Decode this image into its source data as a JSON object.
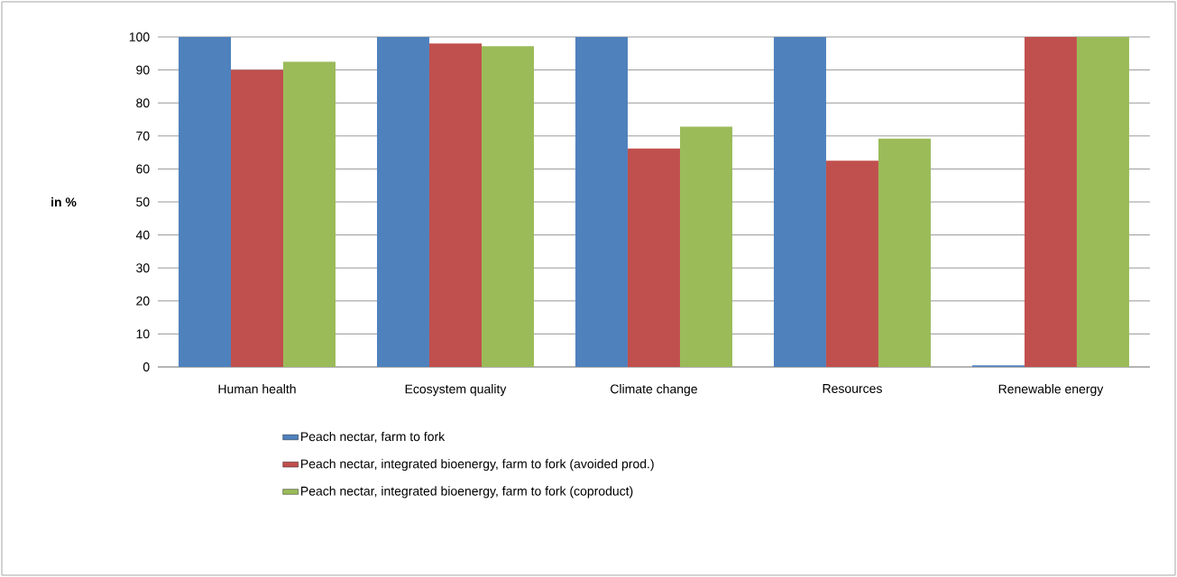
{
  "chart_data": {
    "type": "bar",
    "ylabel": "in %",
    "categories": [
      "Human health",
      "Ecosystem quality",
      "Climate change",
      "Resources",
      "Renewable energy"
    ],
    "series": [
      {
        "name": "Peach nectar, farm to fork",
        "color": "#4f81bd",
        "values": [
          100,
          100,
          100,
          100,
          0.5
        ]
      },
      {
        "name": "Peach nectar, integrated bioenergy, farm to fork (avoided prod.)",
        "color": "#c0504d",
        "values": [
          90,
          98,
          66.2,
          62.5,
          100
        ]
      },
      {
        "name": "Peach nectar, integrated bioenergy, farm to fork (coproduct)",
        "color": "#9bbb59",
        "values": [
          92.5,
          97.2,
          72.8,
          69.2,
          100
        ]
      }
    ],
    "ylim": [
      0,
      100
    ],
    "yticks": [
      0,
      10,
      20,
      30,
      40,
      50,
      60,
      70,
      80,
      90,
      100
    ],
    "grid": "y",
    "legend": "bottom"
  }
}
